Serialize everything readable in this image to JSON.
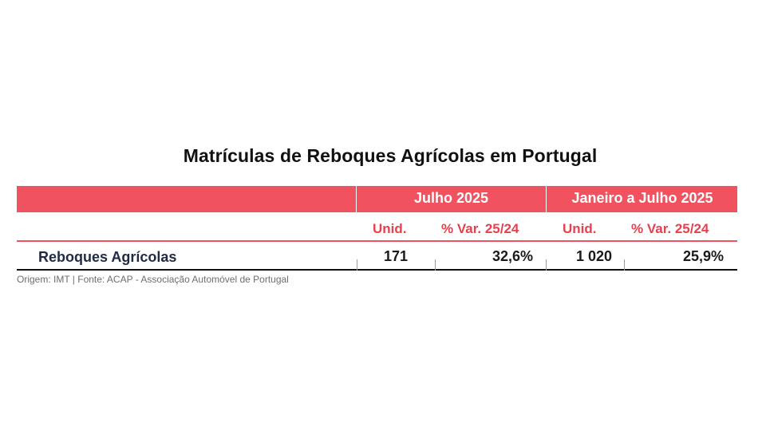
{
  "title": "Matrículas de Reboques Agrícolas em Portugal",
  "table": {
    "group_headers": {
      "month": "Julho 2025",
      "ytd": "Janeiro a Julho 2025"
    },
    "sub_headers": {
      "month_units": "Unid.",
      "month_var": "% Var. 25/24",
      "ytd_units": "Unid.",
      "ytd_var": "% Var. 25/24"
    },
    "rows": [
      {
        "label": "Reboques Agrícolas",
        "month_units": "171",
        "month_var": "32,6%",
        "ytd_units": "1 020",
        "ytd_var": "25,9%"
      }
    ]
  },
  "source": "Origem: IMT | Fonte: ACAP - Associação Automóvel de Portugal",
  "colors": {
    "accent": "#f0525f",
    "accent_text": "#e8404d",
    "label_text": "#1f2a44"
  }
}
